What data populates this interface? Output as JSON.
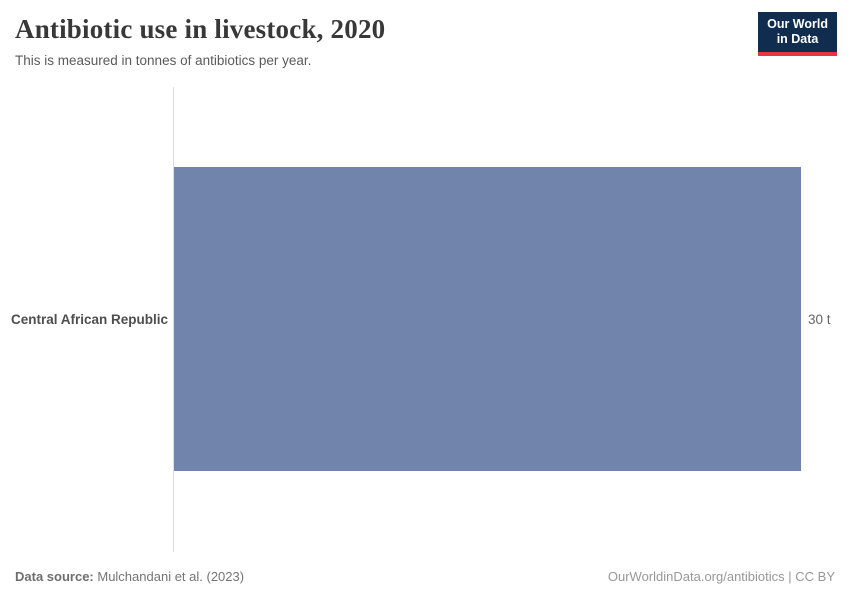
{
  "header": {
    "title": "Antibiotic use in livestock, 2020",
    "subtitle": "This is measured in tonnes of antibiotics per year."
  },
  "logo": {
    "line1": "Our World",
    "line2": "in Data",
    "bg_color": "#102d50",
    "accent_color": "#e5353e"
  },
  "chart": {
    "entity_label": "Central African Republic",
    "value_label": "30 t",
    "bar_color": "#7185ac",
    "axis_color": "#dcdcdc"
  },
  "chart_data": {
    "type": "bar",
    "orientation": "horizontal",
    "title": "Antibiotic use in livestock, 2020",
    "subtitle": "This is measured in tonnes of antibiotics per year.",
    "categories": [
      "Central African Republic"
    ],
    "values": [
      30
    ],
    "unit": "tonnes of antibiotics per year",
    "value_suffix": " t",
    "xlim": [
      0,
      30
    ],
    "grid": false,
    "legend": false
  },
  "footer": {
    "source_label": "Data source:",
    "source_value": " Mulchandani et al. (2023)",
    "link_text": "OurWorldinData.org/antibiotics | CC BY"
  }
}
